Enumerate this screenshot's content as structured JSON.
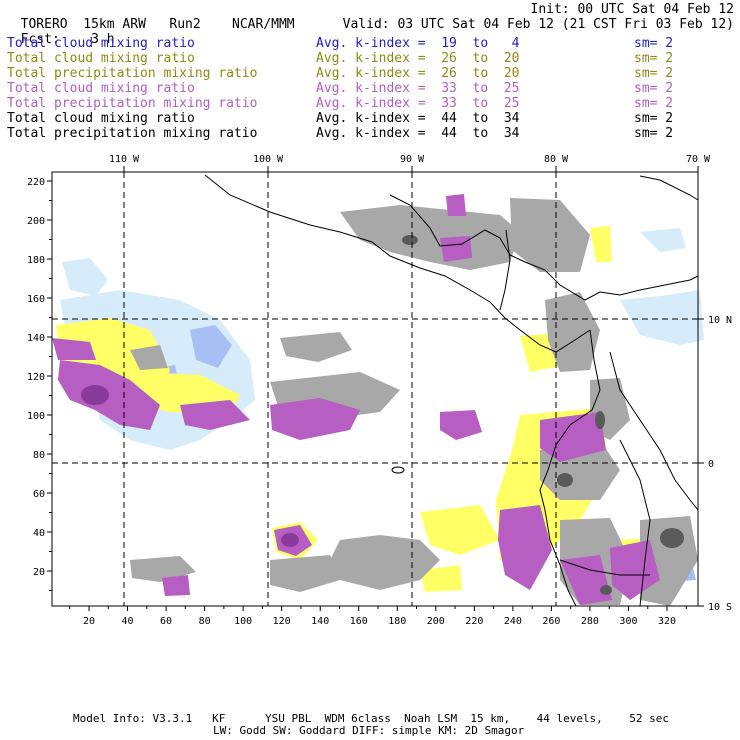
{
  "header": {
    "model": "TORERO",
    "resolution": "15km ARW",
    "run": "Run2",
    "org": "NCAR/MMM",
    "init": "Init: 00 UTC Sat 04 Feb 12",
    "fcst_label": "Fcst:",
    "fcst_value": "3 h",
    "valid": "Valid: 03 UTC Sat 04 Feb 12 (21 CST Fri 03 Feb 12)"
  },
  "legend": [
    {
      "field": "Total cloud mixing ratio",
      "kindex": "Avg. k-index =  19  to   4",
      "sm": "sm= 2",
      "color": "#2020c8"
    },
    {
      "field": "Total cloud mixing ratio",
      "kindex": "Avg. k-index =  26  to  20",
      "sm": "sm= 2",
      "color": "#8c8c14"
    },
    {
      "field": "Total precipitation mixing ratio",
      "kindex": "Avg. k-index =  26  to  20",
      "sm": "sm= 2",
      "color": "#8c8c14"
    },
    {
      "field": "Total cloud mixing ratio",
      "kindex": "Avg. k-index =  33  to  25",
      "sm": "sm= 2",
      "color": "#b060c0"
    },
    {
      "field": "Total precipitation mixing ratio",
      "kindex": "Avg. k-index =  33  to  25",
      "sm": "sm= 2",
      "color": "#b060c0"
    },
    {
      "field": "Total cloud mixing ratio",
      "kindex": "Avg. k-index =  44  to  34",
      "sm": "sm= 2",
      "color": "#000000"
    },
    {
      "field": "Total precipitation mixing ratio",
      "kindex": "Avg. k-index =  44  to  34",
      "sm": "sm= 2",
      "color": "#000000"
    }
  ],
  "map": {
    "lon_labels": [
      "110 W",
      "100 W",
      "90 W",
      "80 W",
      "70 W"
    ],
    "lat_labels": [
      "10 N",
      "0",
      "10 S"
    ],
    "x_ticks": [
      "20",
      "40",
      "60",
      "80",
      "100",
      "120",
      "140",
      "160",
      "180",
      "200",
      "220",
      "240",
      "260",
      "280",
      "300",
      "320"
    ],
    "y_ticks": [
      "20",
      "40",
      "60",
      "80",
      "100",
      "120",
      "140",
      "160",
      "180",
      "200",
      "220"
    ],
    "colors": {
      "light_blue": "#d6ecfa",
      "blue": "#a8bff5",
      "yellow": "#ffff66",
      "purple": "#b65ec2",
      "dark_purple": "#8a3a9a",
      "gray": "#a8a8a8",
      "dark_gray": "#5a5a5a"
    }
  },
  "footer": {
    "line1": "Model Info: V3.3.1   KF      YSU PBL  WDM 6class  Noah LSM  15 km,    44 levels,    52 sec",
    "line2": "LW: Godd SW: Goddard DIFF: simple KM: 2D Smagor"
  }
}
